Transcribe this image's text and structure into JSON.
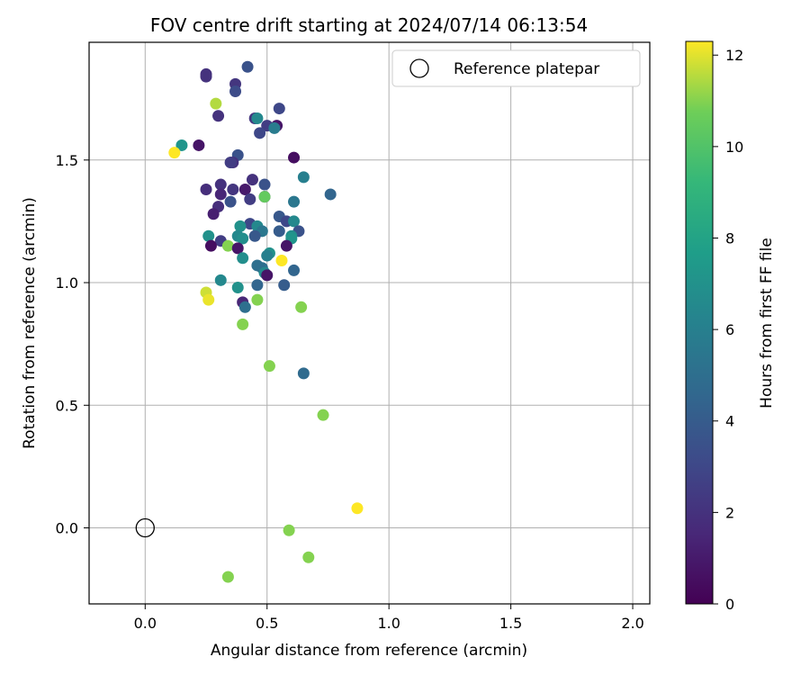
{
  "chart_data": {
    "type": "scatter",
    "title": "FOV centre drift starting at 2024/07/14 06:13:54",
    "xlabel": "Angular distance from reference (arcmin)",
    "ylabel": "Rotation from reference (arcmin)",
    "xlim": [
      -0.23,
      2.07
    ],
    "ylim": [
      -0.31,
      1.98
    ],
    "xticks": [
      0.0,
      0.5,
      1.0,
      1.5,
      2.0
    ],
    "xtick_labels": [
      "0.0",
      "0.5",
      "1.0",
      "1.5",
      "2.0"
    ],
    "yticks": [
      0.0,
      0.5,
      1.0,
      1.5
    ],
    "ytick_labels": [
      "0.0",
      "0.5",
      "1.0",
      "1.5"
    ],
    "grid": true,
    "legend": {
      "placement": "top-right",
      "entries": [
        "Reference platepar"
      ]
    },
    "colorbar": {
      "label": "Hours from first FF file",
      "range": [
        0,
        12.3
      ],
      "ticks": [
        0,
        2,
        4,
        6,
        8,
        10,
        12
      ],
      "tick_labels": [
        "0",
        "2",
        "4",
        "6",
        "8",
        "10",
        "12"
      ],
      "colormap": "viridis"
    },
    "reference_point": {
      "x": 0.0,
      "y": 0.0
    },
    "series": [
      {
        "points": [
          {
            "x": 0.25,
            "y": 1.85,
            "c": 2.0
          },
          {
            "x": 0.42,
            "y": 1.88,
            "c": 3.5
          },
          {
            "x": 0.25,
            "y": 1.84,
            "c": 2.0
          },
          {
            "x": 0.37,
            "y": 1.81,
            "c": 2.2
          },
          {
            "x": 0.37,
            "y": 1.78,
            "c": 3.2
          },
          {
            "x": 0.29,
            "y": 1.73,
            "c": 11.5
          },
          {
            "x": 0.55,
            "y": 1.71,
            "c": 3.0
          },
          {
            "x": 0.3,
            "y": 1.68,
            "c": 2.0
          },
          {
            "x": 0.45,
            "y": 1.67,
            "c": 2.2
          },
          {
            "x": 0.46,
            "y": 1.67,
            "c": 6.5
          },
          {
            "x": 0.5,
            "y": 1.64,
            "c": 2.5
          },
          {
            "x": 0.54,
            "y": 1.64,
            "c": 0.8
          },
          {
            "x": 0.53,
            "y": 1.63,
            "c": 5.8
          },
          {
            "x": 0.47,
            "y": 1.61,
            "c": 3.0
          },
          {
            "x": 0.15,
            "y": 1.56,
            "c": 7.2
          },
          {
            "x": 0.22,
            "y": 1.56,
            "c": 0.8
          },
          {
            "x": 0.12,
            "y": 1.53,
            "c": 12.3
          },
          {
            "x": 0.38,
            "y": 1.52,
            "c": 3.5
          },
          {
            "x": 0.61,
            "y": 1.51,
            "c": 0.5
          },
          {
            "x": 0.36,
            "y": 1.49,
            "c": 2.0
          },
          {
            "x": 0.35,
            "y": 1.49,
            "c": 2.5
          },
          {
            "x": 0.65,
            "y": 1.43,
            "c": 6.0
          },
          {
            "x": 0.44,
            "y": 1.42,
            "c": 2.0
          },
          {
            "x": 0.49,
            "y": 1.4,
            "c": 3.5
          },
          {
            "x": 0.31,
            "y": 1.4,
            "c": 2.0
          },
          {
            "x": 0.25,
            "y": 1.38,
            "c": 1.8
          },
          {
            "x": 0.41,
            "y": 1.38,
            "c": 1.0
          },
          {
            "x": 0.36,
            "y": 1.38,
            "c": 2.2
          },
          {
            "x": 0.31,
            "y": 1.36,
            "c": 1.5
          },
          {
            "x": 0.76,
            "y": 1.36,
            "c": 4.5
          },
          {
            "x": 0.49,
            "y": 1.35,
            "c": 1.2
          },
          {
            "x": 0.49,
            "y": 1.35,
            "c": 10.5
          },
          {
            "x": 0.43,
            "y": 1.34,
            "c": 2.5
          },
          {
            "x": 0.35,
            "y": 1.33,
            "c": 3.5
          },
          {
            "x": 0.61,
            "y": 1.33,
            "c": 5.5
          },
          {
            "x": 0.3,
            "y": 1.31,
            "c": 1.8
          },
          {
            "x": 0.28,
            "y": 1.28,
            "c": 1.2
          },
          {
            "x": 0.55,
            "y": 1.27,
            "c": 3.8
          },
          {
            "x": 0.58,
            "y": 1.25,
            "c": 3.0
          },
          {
            "x": 0.61,
            "y": 1.25,
            "c": 6.5
          },
          {
            "x": 0.43,
            "y": 1.24,
            "c": 3.0
          },
          {
            "x": 0.39,
            "y": 1.23,
            "c": 7.0
          },
          {
            "x": 0.46,
            "y": 1.23,
            "c": 6.5
          },
          {
            "x": 0.48,
            "y": 1.21,
            "c": 5.5
          },
          {
            "x": 0.55,
            "y": 1.21,
            "c": 4.0
          },
          {
            "x": 0.63,
            "y": 1.21,
            "c": 3.5
          },
          {
            "x": 0.6,
            "y": 1.19,
            "c": 6.8
          },
          {
            "x": 0.45,
            "y": 1.19,
            "c": 3.8
          },
          {
            "x": 0.38,
            "y": 1.19,
            "c": 6.5
          },
          {
            "x": 0.26,
            "y": 1.19,
            "c": 7.0
          },
          {
            "x": 0.4,
            "y": 1.18,
            "c": 6.8
          },
          {
            "x": 0.31,
            "y": 1.17,
            "c": 2.5
          },
          {
            "x": 0.6,
            "y": 1.18,
            "c": 7.2
          },
          {
            "x": 0.58,
            "y": 1.15,
            "c": 0.8
          },
          {
            "x": 0.27,
            "y": 1.15,
            "c": 0.5
          },
          {
            "x": 0.34,
            "y": 1.15,
            "c": 11.0
          },
          {
            "x": 0.38,
            "y": 1.14,
            "c": 0.8
          },
          {
            "x": 0.51,
            "y": 1.12,
            "c": 7.0
          },
          {
            "x": 0.5,
            "y": 1.11,
            "c": 6.0
          },
          {
            "x": 0.4,
            "y": 1.1,
            "c": 6.8
          },
          {
            "x": 0.56,
            "y": 1.09,
            "c": 12.3
          },
          {
            "x": 0.46,
            "y": 1.07,
            "c": 5.0
          },
          {
            "x": 0.48,
            "y": 1.06,
            "c": 5.0
          },
          {
            "x": 0.61,
            "y": 1.05,
            "c": 4.5
          },
          {
            "x": 0.49,
            "y": 1.04,
            "c": 6.5
          },
          {
            "x": 0.5,
            "y": 1.03,
            "c": 0.8
          },
          {
            "x": 0.31,
            "y": 1.01,
            "c": 6.5
          },
          {
            "x": 0.57,
            "y": 0.99,
            "c": 4.0
          },
          {
            "x": 0.46,
            "y": 0.99,
            "c": 4.5
          },
          {
            "x": 0.38,
            "y": 0.98,
            "c": 7.0
          },
          {
            "x": 0.25,
            "y": 0.96,
            "c": 11.8
          },
          {
            "x": 0.26,
            "y": 0.93,
            "c": 12.1
          },
          {
            "x": 0.46,
            "y": 0.93,
            "c": 11.0
          },
          {
            "x": 0.4,
            "y": 0.92,
            "c": 1.5
          },
          {
            "x": 0.41,
            "y": 0.9,
            "c": 5.0
          },
          {
            "x": 0.64,
            "y": 0.9,
            "c": 11.0
          },
          {
            "x": 0.4,
            "y": 0.83,
            "c": 11.0
          },
          {
            "x": 0.51,
            "y": 0.66,
            "c": 11.0
          },
          {
            "x": 0.65,
            "y": 0.63,
            "c": 4.8
          },
          {
            "x": 0.73,
            "y": 0.46,
            "c": 11.0
          },
          {
            "x": 0.87,
            "y": 0.08,
            "c": 12.3
          },
          {
            "x": 0.59,
            "y": -0.01,
            "c": 11.0
          },
          {
            "x": 0.67,
            "y": -0.12,
            "c": 11.0
          },
          {
            "x": 0.34,
            "y": -0.2,
            "c": 11.0
          }
        ]
      }
    ]
  }
}
